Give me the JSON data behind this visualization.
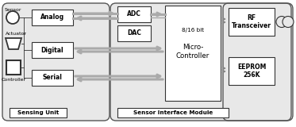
{
  "bg_color": "#ffffff",
  "outer_fill": "#e8e8e8",
  "box_fill": "#ffffff",
  "box_ec": "#333333",
  "arrow_color": "#999999",
  "text_color": "#000000",
  "sensor_label": "Sensor",
  "actuator_label": "Actuator",
  "controller_label": "Controller",
  "analog_label": "Analog",
  "digital_label": "Digital",
  "serial_label": "Serial",
  "adc_label": "ADC",
  "dac_label": "DAC",
  "mc_label1": "8/16 bit",
  "mc_label2": "Micro-\nController",
  "rf_label": "RF\nTransceiver",
  "eeprom_label": "EEPROM\n256K",
  "sensing_unit_label": "Sensing Unit",
  "sensor_interface_label": "Sensor Interface Module"
}
